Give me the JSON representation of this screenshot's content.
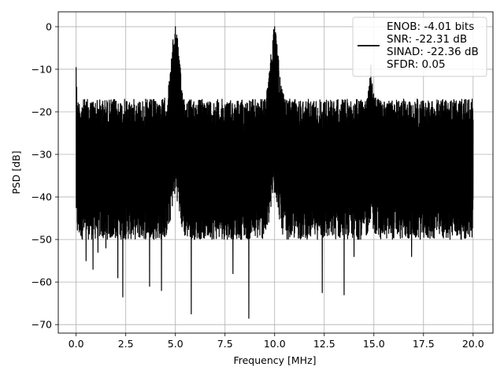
{
  "chart_data": {
    "type": "line",
    "title": "",
    "xlabel": "Frequency [MHz]",
    "ylabel": "PSD [dB]",
    "xlim": [
      -0.9,
      21.0
    ],
    "ylim": [
      -72.0,
      3.5
    ],
    "xticks": [
      0.0,
      2.5,
      5.0,
      7.5,
      10.0,
      12.5,
      15.0,
      17.5,
      20.0
    ],
    "xtick_labels": [
      "0.0",
      "2.5",
      "5.0",
      "7.5",
      "10.0",
      "12.5",
      "15.0",
      "17.5",
      "20.0"
    ],
    "yticks": [
      0,
      -10,
      -20,
      -30,
      -40,
      -50,
      -60,
      -70
    ],
    "ytick_labels": [
      "0",
      "−10",
      "−20",
      "−30",
      "−40",
      "−50",
      "−60",
      "−70"
    ],
    "grid": true,
    "legend_position": "top-right",
    "legend_lines": [
      "ENOB: -4.01 bits",
      "SNR: -22.31 dB",
      "SINAD: -22.36 dB",
      "SFDR: 0.05"
    ],
    "line_color": "#000000",
    "series": [
      {
        "x_range": [
          0.0,
          20.0
        ],
        "noise_floor_db": -30,
        "noise_upper_db": -17,
        "noise_lower_db": -45,
        "min_dips": [
          {
            "x": 0.5,
            "y": -55
          },
          {
            "x": 0.85,
            "y": -57
          },
          {
            "x": 1.1,
            "y": -53
          },
          {
            "x": 1.5,
            "y": -52
          },
          {
            "x": 2.1,
            "y": -59
          },
          {
            "x": 2.35,
            "y": -63.5
          },
          {
            "x": 3.7,
            "y": -61
          },
          {
            "x": 4.3,
            "y": -62
          },
          {
            "x": 5.8,
            "y": -67.5
          },
          {
            "x": 7.9,
            "y": -58
          },
          {
            "x": 8.7,
            "y": -68.5
          },
          {
            "x": 12.4,
            "y": -62.5
          },
          {
            "x": 13.5,
            "y": -63
          },
          {
            "x": 14.0,
            "y": -54
          },
          {
            "x": 16.9,
            "y": -54
          }
        ],
        "peaks": [
          {
            "x": 0.0,
            "y": -9.5
          },
          {
            "x": 5.0,
            "y": 0.0
          },
          {
            "x": 10.0,
            "y": 0.0
          },
          {
            "x": 14.85,
            "y": -9.0
          }
        ]
      }
    ]
  }
}
